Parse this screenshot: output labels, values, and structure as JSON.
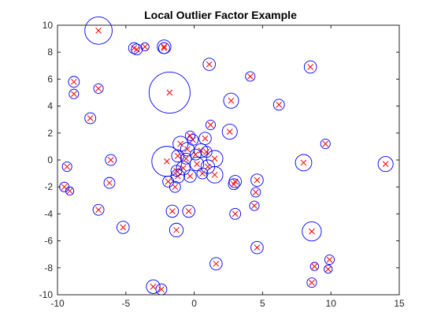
{
  "chart_data": {
    "type": "scatter",
    "title": "Local Outlier Factor Example",
    "xlabel": "",
    "ylabel": "",
    "xlim": [
      -10,
      15
    ],
    "ylim": [
      -10,
      10
    ],
    "xticks": [
      -10,
      -5,
      0,
      5,
      10,
      15
    ],
    "yticks": [
      -10,
      -8,
      -6,
      -4,
      -2,
      0,
      2,
      4,
      6,
      8,
      10
    ],
    "grid": false,
    "legend": "none",
    "colors": {
      "marker": "#ff0000",
      "circle": "#0000ff",
      "axis": "#262626"
    },
    "points": [
      {
        "x": -7.0,
        "y": 9.6,
        "r": 1.0
      },
      {
        "x": -4.4,
        "y": 8.3,
        "r": 0.4
      },
      {
        "x": -4.2,
        "y": 8.2,
        "r": 0.4
      },
      {
        "x": -3.6,
        "y": 8.4,
        "r": 0.3
      },
      {
        "x": -2.2,
        "y": 8.4,
        "r": 0.5
      },
      {
        "x": -2.2,
        "y": 8.3,
        "r": 0.4
      },
      {
        "x": 1.1,
        "y": 7.1,
        "r": 0.45
      },
      {
        "x": 8.5,
        "y": 6.9,
        "r": 0.45
      },
      {
        "x": -8.8,
        "y": 5.8,
        "r": 0.4
      },
      {
        "x": -8.8,
        "y": 4.9,
        "r": 0.35
      },
      {
        "x": -7.0,
        "y": 5.3,
        "r": 0.35
      },
      {
        "x": -1.8,
        "y": 5.0,
        "r": 1.5
      },
      {
        "x": 4.1,
        "y": 6.2,
        "r": 0.35
      },
      {
        "x": 2.7,
        "y": 4.4,
        "r": 0.55
      },
      {
        "x": 6.2,
        "y": 4.1,
        "r": 0.4
      },
      {
        "x": -7.6,
        "y": 3.1,
        "r": 0.4
      },
      {
        "x": 9.6,
        "y": 1.2,
        "r": 0.35
      },
      {
        "x": 1.2,
        "y": 2.6,
        "r": 0.35
      },
      {
        "x": 2.6,
        "y": 2.1,
        "r": 0.55
      },
      {
        "x": -9.3,
        "y": -0.5,
        "r": 0.35
      },
      {
        "x": -6.1,
        "y": 0.0,
        "r": 0.4
      },
      {
        "x": -6.2,
        "y": -1.7,
        "r": 0.4
      },
      {
        "x": -9.5,
        "y": -2.0,
        "r": 0.35
      },
      {
        "x": -9.1,
        "y": -2.3,
        "r": 0.3
      },
      {
        "x": 8.0,
        "y": -0.2,
        "r": 0.6
      },
      {
        "x": 14.0,
        "y": -0.3,
        "r": 0.55
      },
      {
        "x": -2.0,
        "y": -0.1,
        "r": 1.1
      },
      {
        "x": -1.0,
        "y": 1.2,
        "r": 0.55
      },
      {
        "x": -0.5,
        "y": 0.8,
        "r": 0.5
      },
      {
        "x": 0.5,
        "y": 0.7,
        "r": 0.5
      },
      {
        "x": 1.5,
        "y": 0.1,
        "r": 0.6
      },
      {
        "x": 1.5,
        "y": -1.1,
        "r": 0.6
      },
      {
        "x": 0.2,
        "y": -0.3,
        "r": 0.5
      },
      {
        "x": -0.8,
        "y": -0.6,
        "r": 0.5
      },
      {
        "x": -1.2,
        "y": -1.2,
        "r": 0.5
      },
      {
        "x": -1.4,
        "y": -2.0,
        "r": 0.4
      },
      {
        "x": -1.9,
        "y": -1.6,
        "r": 0.4
      },
      {
        "x": 0.8,
        "y": 1.6,
        "r": 0.45
      },
      {
        "x": -0.1,
        "y": 1.5,
        "r": 0.4
      },
      {
        "x": 1.0,
        "y": -0.5,
        "r": 0.5
      },
      {
        "x": -0.3,
        "y": -1.2,
        "r": 0.45
      },
      {
        "x": 0.9,
        "y": 0.6,
        "r": 0.4
      },
      {
        "x": -0.6,
        "y": 0.1,
        "r": 0.4
      },
      {
        "x": 0.1,
        "y": 0.4,
        "r": 0.4
      },
      {
        "x": -1.2,
        "y": 0.3,
        "r": 0.45
      },
      {
        "x": -1.3,
        "y": -0.8,
        "r": 0.4
      },
      {
        "x": 0.6,
        "y": -1.0,
        "r": 0.4
      },
      {
        "x": -0.3,
        "y": 1.8,
        "r": 0.35
      },
      {
        "x": 3.0,
        "y": -1.6,
        "r": 0.45
      },
      {
        "x": 2.9,
        "y": -1.8,
        "r": 0.4
      },
      {
        "x": 4.6,
        "y": -1.5,
        "r": 0.45
      },
      {
        "x": 4.5,
        "y": -2.4,
        "r": 0.35
      },
      {
        "x": 4.4,
        "y": -3.4,
        "r": 0.35
      },
      {
        "x": 3.0,
        "y": -4.0,
        "r": 0.4
      },
      {
        "x": -7.0,
        "y": -3.7,
        "r": 0.4
      },
      {
        "x": -1.6,
        "y": -3.8,
        "r": 0.45
      },
      {
        "x": -0.4,
        "y": -3.8,
        "r": 0.45
      },
      {
        "x": -5.2,
        "y": -5.0,
        "r": 0.45
      },
      {
        "x": -1.3,
        "y": -5.2,
        "r": 0.5
      },
      {
        "x": 4.6,
        "y": -6.5,
        "r": 0.45
      },
      {
        "x": 1.6,
        "y": -7.7,
        "r": 0.45
      },
      {
        "x": 8.6,
        "y": -5.3,
        "r": 0.7
      },
      {
        "x": 9.9,
        "y": -7.4,
        "r": 0.35
      },
      {
        "x": 8.8,
        "y": -7.9,
        "r": 0.3
      },
      {
        "x": 9.8,
        "y": -8.1,
        "r": 0.3
      },
      {
        "x": 8.6,
        "y": -9.1,
        "r": 0.35
      },
      {
        "x": -3.0,
        "y": -9.4,
        "r": 0.5
      },
      {
        "x": -2.4,
        "y": -9.6,
        "r": 0.4
      }
    ]
  }
}
